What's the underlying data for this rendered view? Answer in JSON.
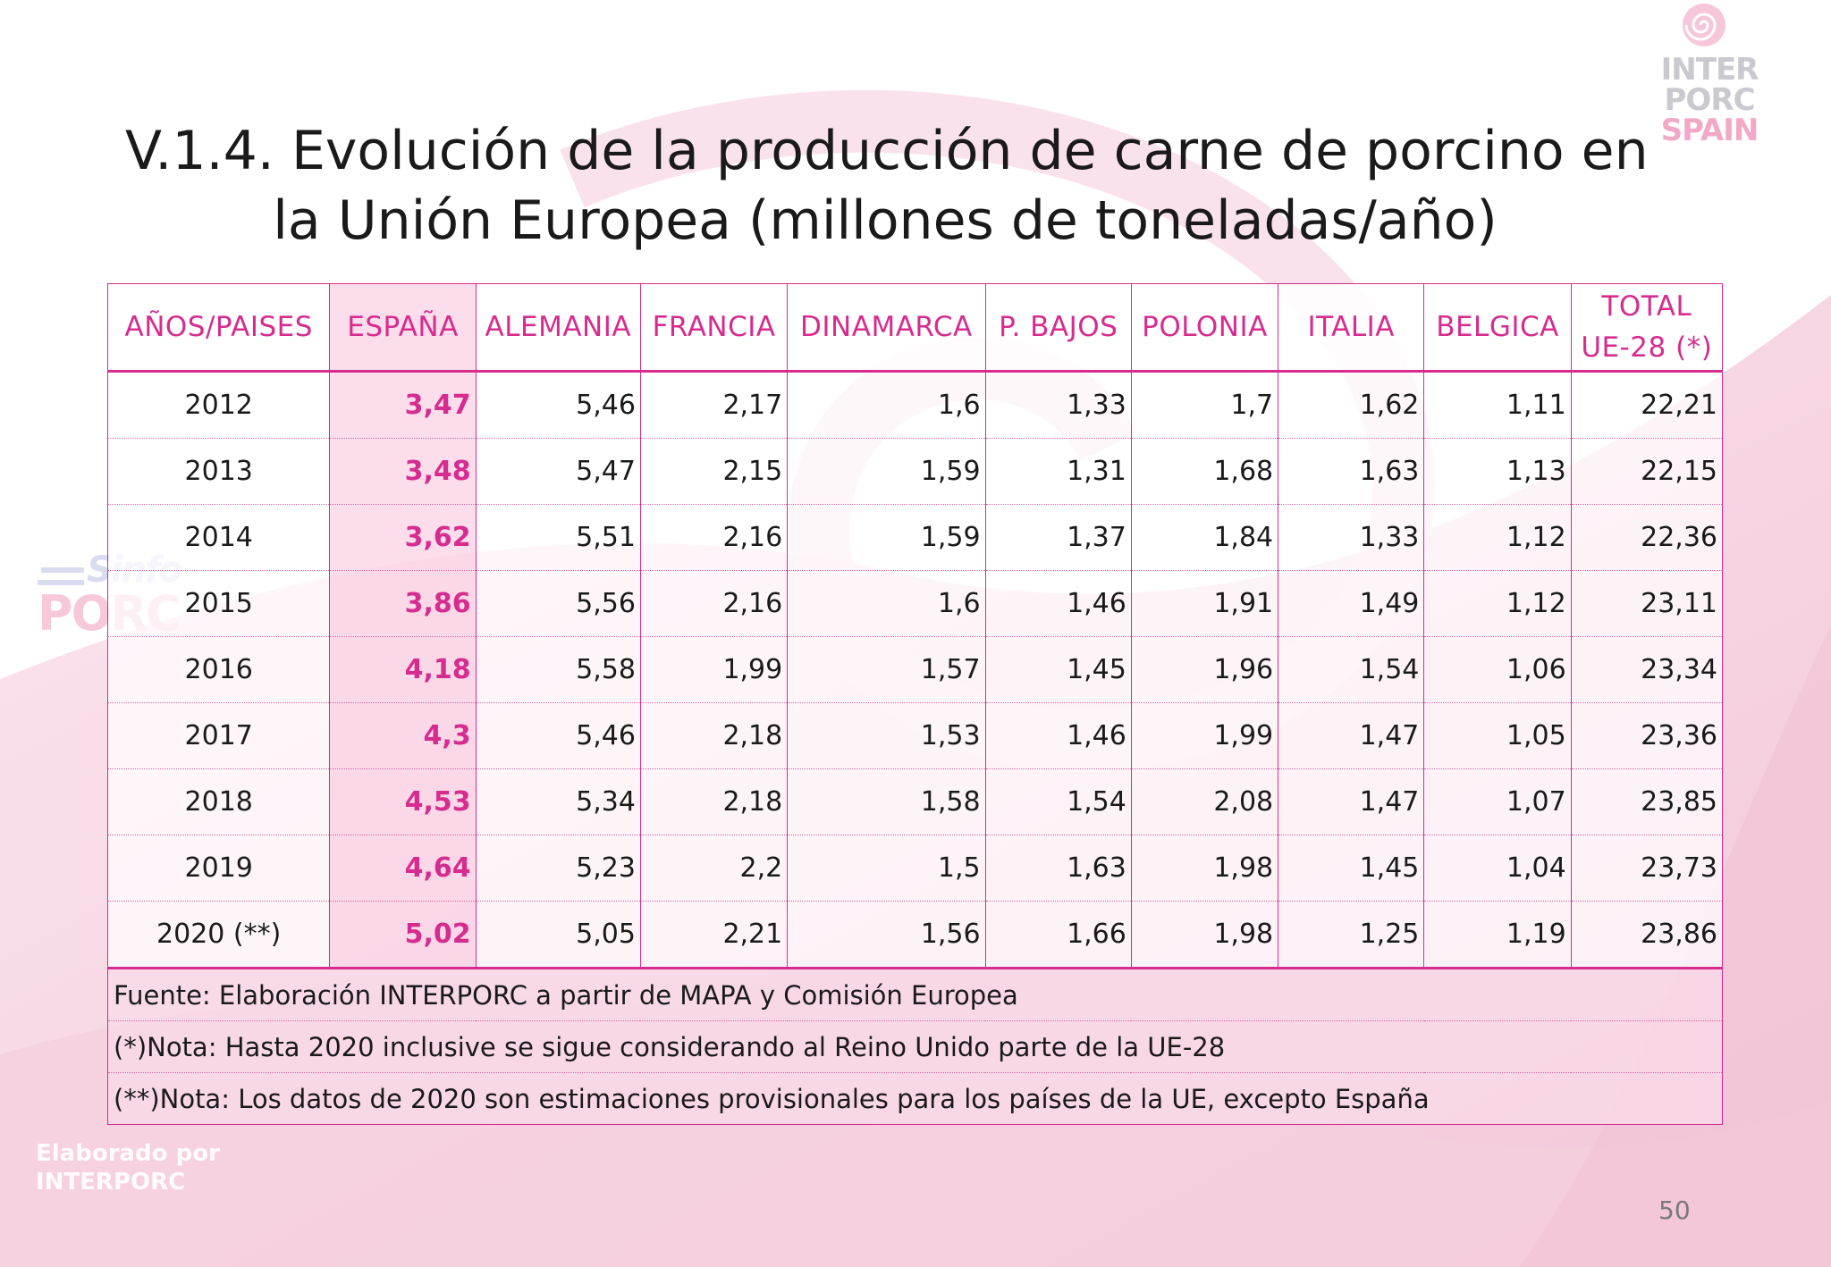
{
  "title": {
    "line1": "V.1.4. Evolución de la producción de carne de porcino en",
    "line2": "la Unión Europea (millones de toneladas/año)"
  },
  "logo": {
    "line1": "INTER",
    "line2": "PORC",
    "line3": "SPAIN",
    "icon": "spiral-icon"
  },
  "table": {
    "headers": [
      "AÑOS/PAISES",
      "ESPAÑA",
      "ALEMANIA",
      "FRANCIA",
      "DINAMARCA",
      "P. BAJOS",
      "POLONIA",
      "ITALIA",
      "BELGICA"
    ],
    "total_header": {
      "line1": "TOTAL",
      "line2": "UE-28 (*)"
    },
    "rows": [
      [
        "2012",
        "3,47",
        "5,46",
        "2,17",
        "1,6",
        "1,33",
        "1,7",
        "1,62",
        "1,11",
        "22,21"
      ],
      [
        "2013",
        "3,48",
        "5,47",
        "2,15",
        "1,59",
        "1,31",
        "1,68",
        "1,63",
        "1,13",
        "22,15"
      ],
      [
        "2014",
        "3,62",
        "5,51",
        "2,16",
        "1,59",
        "1,37",
        "1,84",
        "1,33",
        "1,12",
        "22,36"
      ],
      [
        "2015",
        "3,86",
        "5,56",
        "2,16",
        "1,6",
        "1,46",
        "1,91",
        "1,49",
        "1,12",
        "23,11"
      ],
      [
        "2016",
        "4,18",
        "5,58",
        "1,99",
        "1,57",
        "1,45",
        "1,96",
        "1,54",
        "1,06",
        "23,34"
      ],
      [
        "2017",
        "4,3",
        "5,46",
        "2,18",
        "1,53",
        "1,46",
        "1,99",
        "1,47",
        "1,05",
        "23,36"
      ],
      [
        "2018",
        "4,53",
        "5,34",
        "2,18",
        "1,58",
        "1,54",
        "2,08",
        "1,47",
        "1,07",
        "23,85"
      ],
      [
        "2019",
        "4,64",
        "5,23",
        "2,2",
        "1,5",
        "1,63",
        "1,98",
        "1,45",
        "1,04",
        "23,73"
      ],
      [
        "2020 (**)",
        "5,02",
        "5,05",
        "2,21",
        "1,56",
        "1,66",
        "1,98",
        "1,25",
        "1,19",
        "23,86"
      ]
    ],
    "notes": [
      "Fuente: Elaboración INTERPORC  a partir de MAPA y Comisión Europea",
      "(*)Nota: Hasta 2020 inclusive se sigue considerando al Reino Unido parte de la UE-28",
      "(**)Nota: Los datos de 2020 son estimaciones provisionales para los países de la UE, excepto España"
    ]
  },
  "watermark": {
    "line1": "Sinfo",
    "line2": "PORC"
  },
  "footer": {
    "line1": "Elaborado por",
    "line2": "INTERPORC"
  },
  "page_number": "50",
  "colors": {
    "accent": "#d62c8f",
    "background_pink": "#f6d3e2"
  }
}
